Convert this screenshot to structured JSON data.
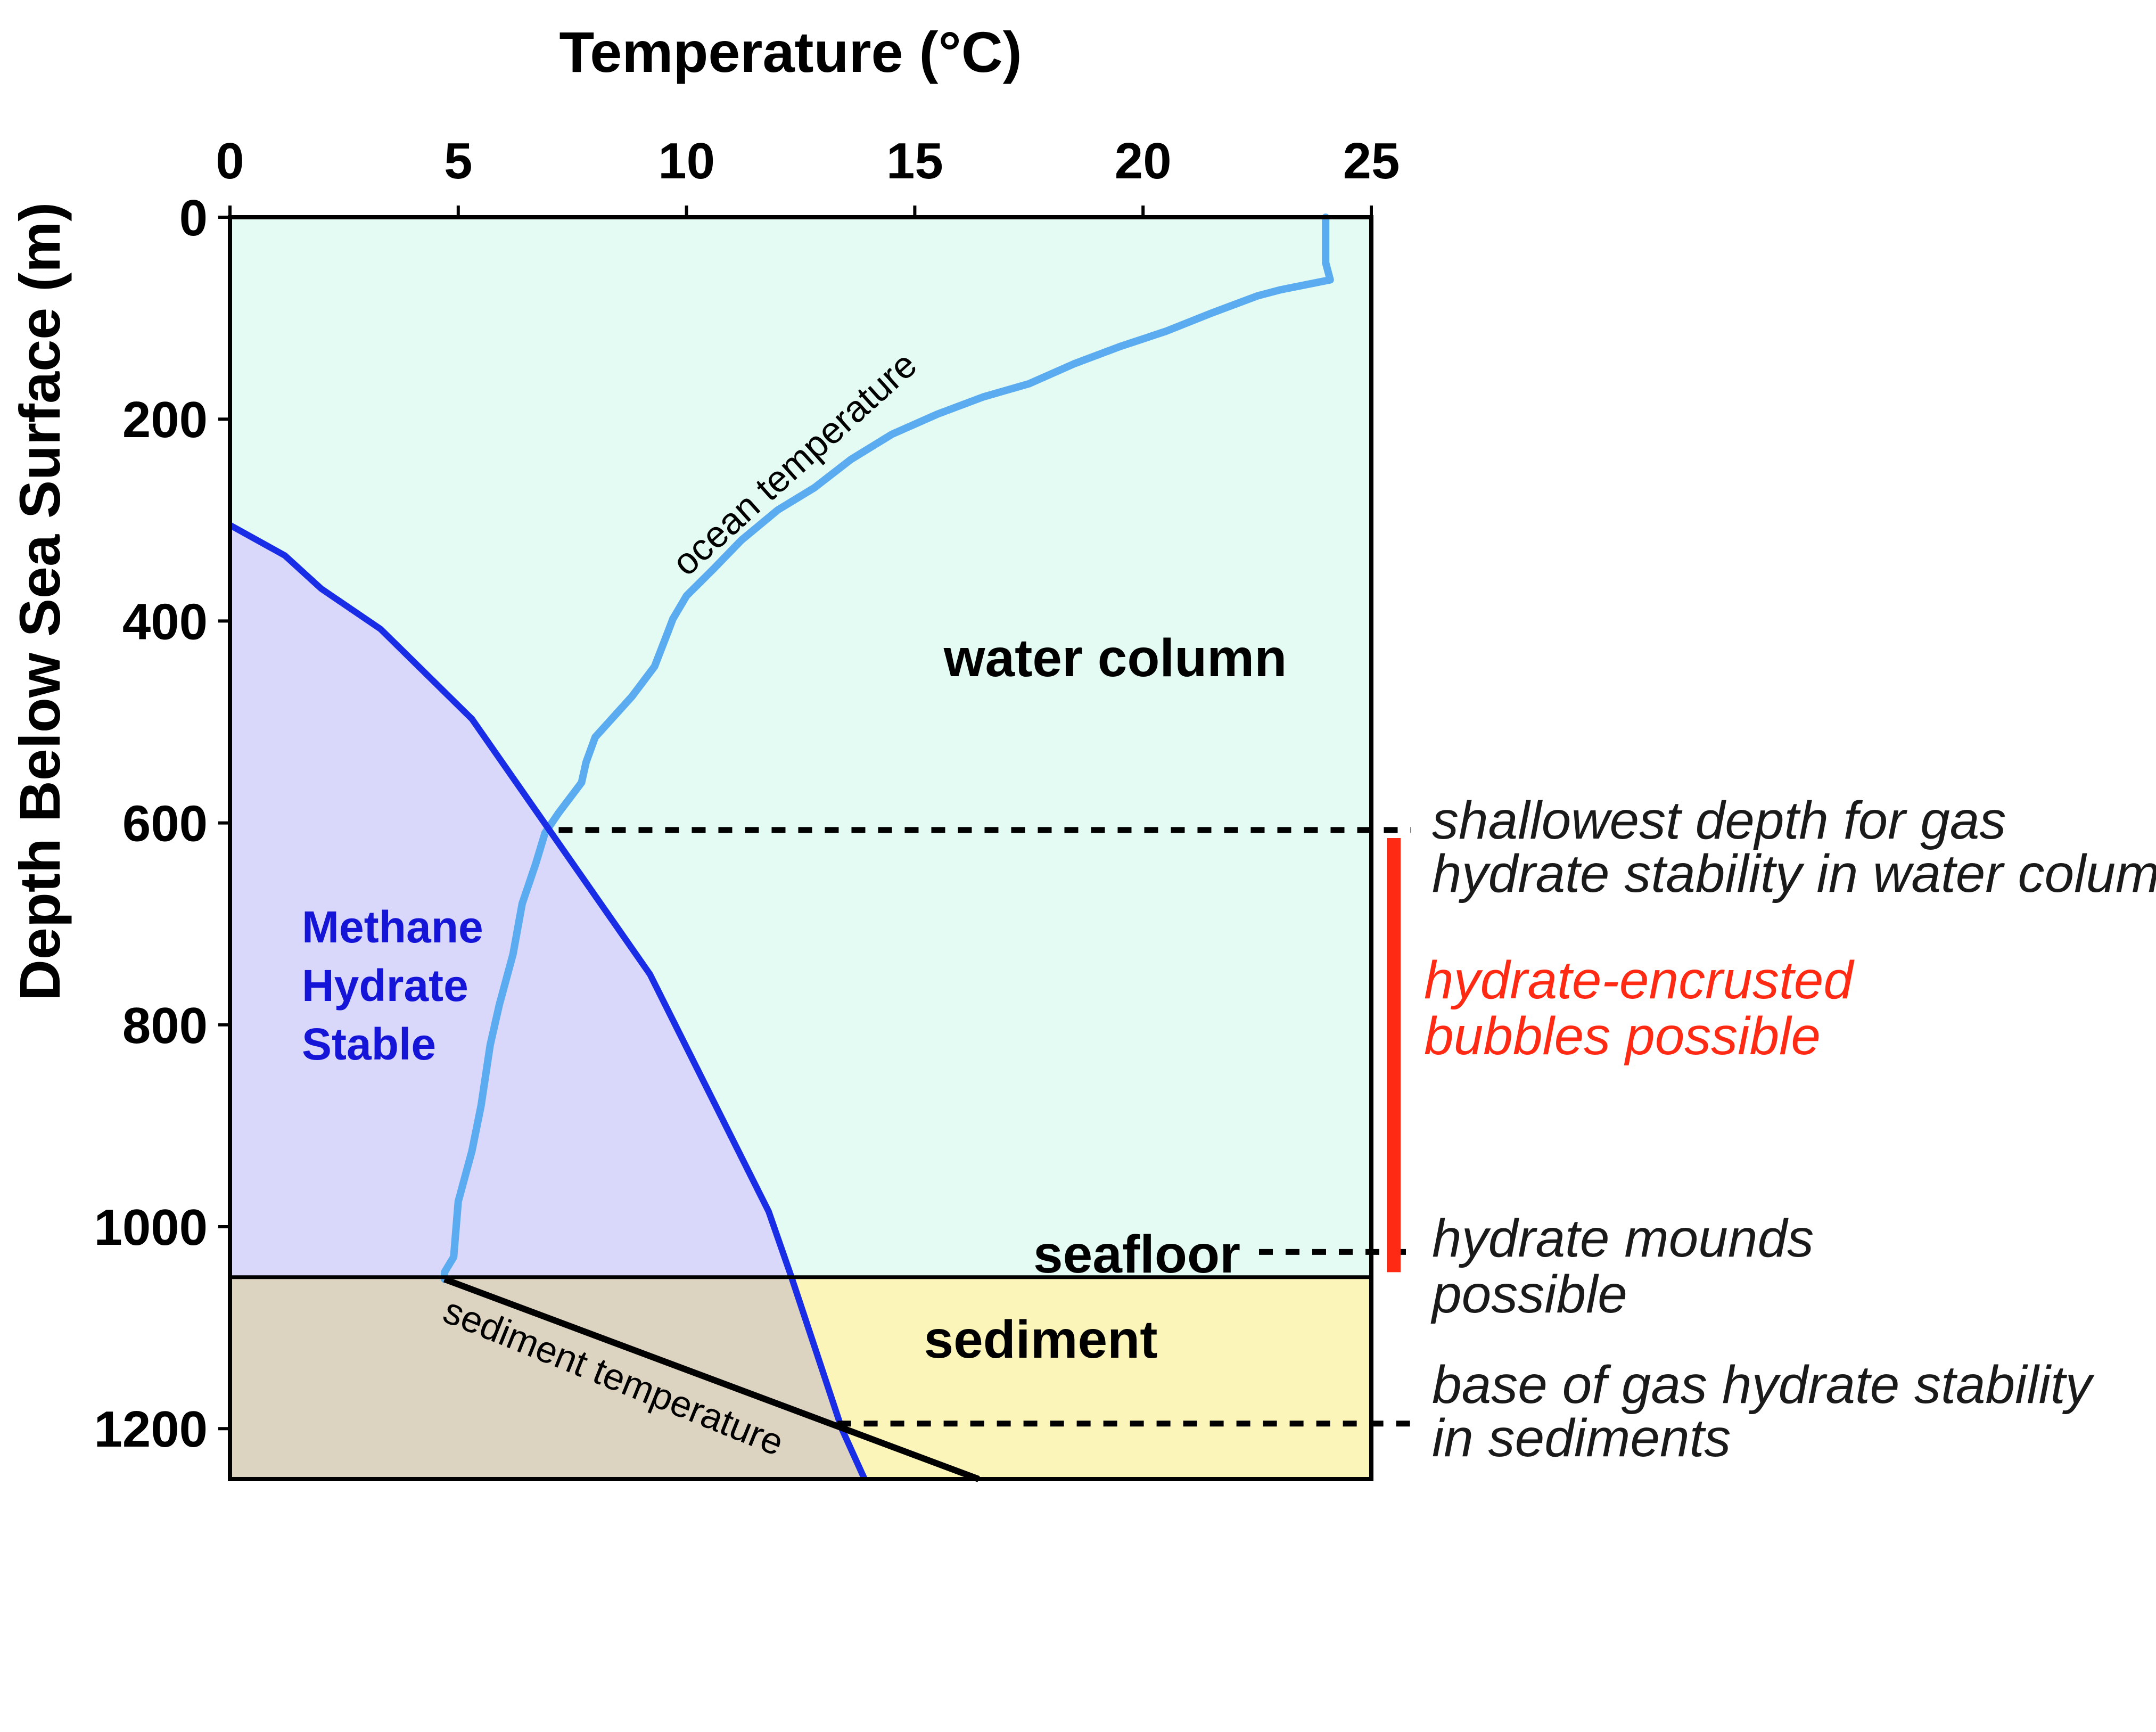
{
  "chart_data": {
    "type": "line",
    "xlabel": "Temperature (°C)",
    "ylabel": "Depth Below Sea Surface (m)",
    "xlim": [
      0,
      25
    ],
    "ylim": [
      0,
      1250
    ],
    "x_ticks": [
      "0",
      "5",
      "10",
      "15",
      "20",
      "25"
    ],
    "y_ticks": [
      "0",
      "200",
      "400",
      "600",
      "800",
      "1000",
      "1200"
    ],
    "seafloor_depth": 1050,
    "series": [
      {
        "name": "ocean temperature",
        "color": "#5aabf0",
        "points": [
          [
            24.0,
            0
          ],
          [
            24.0,
            45
          ],
          [
            24.1,
            62
          ],
          [
            23.0,
            72
          ],
          [
            22.5,
            78
          ],
          [
            21.5,
            95
          ],
          [
            20.5,
            113
          ],
          [
            19.5,
            128
          ],
          [
            18.5,
            145
          ],
          [
            17.5,
            165
          ],
          [
            16.5,
            178
          ],
          [
            15.5,
            195
          ],
          [
            14.5,
            215
          ],
          [
            13.6,
            240
          ],
          [
            12.8,
            268
          ],
          [
            12.0,
            290
          ],
          [
            11.2,
            320
          ],
          [
            10.6,
            348
          ],
          [
            10.0,
            375
          ],
          [
            9.7,
            398
          ],
          [
            9.6,
            410
          ],
          [
            9.3,
            445
          ],
          [
            8.8,
            475
          ],
          [
            8.5,
            490
          ],
          [
            8.0,
            515
          ],
          [
            7.8,
            540
          ],
          [
            7.7,
            560
          ],
          [
            7.2,
            590
          ],
          [
            6.9,
            610
          ],
          [
            6.7,
            640
          ],
          [
            6.4,
            680
          ],
          [
            6.2,
            730
          ],
          [
            5.9,
            780
          ],
          [
            5.7,
            820
          ],
          [
            5.5,
            880
          ],
          [
            5.3,
            925
          ],
          [
            5.0,
            975
          ],
          [
            4.9,
            1030
          ],
          [
            4.7,
            1045
          ],
          [
            4.7,
            1052
          ]
        ]
      },
      {
        "name": "methane hydrate stability boundary",
        "color": "#1a2de6",
        "points": [
          [
            0,
            305
          ],
          [
            1.2,
            335
          ],
          [
            2.0,
            368
          ],
          [
            3.3,
            408
          ],
          [
            5.3,
            497
          ],
          [
            9.2,
            750
          ],
          [
            11.8,
            985
          ],
          [
            12.3,
            1050
          ],
          [
            13.4,
            1200
          ],
          [
            13.9,
            1250
          ]
        ]
      },
      {
        "name": "sediment temperature",
        "color": "#000000",
        "points": [
          [
            4.7,
            1052
          ],
          [
            16.4,
            1250
          ]
        ]
      }
    ],
    "annotations": {
      "ocean_curve_label": "ocean temperature",
      "sediment_curve_label": "sediment temperature",
      "water_column": "water column",
      "sediment": "sediment",
      "methane_line1": "Methane",
      "methane_line2": "Hydrate",
      "methane_line3": "Stable",
      "seafloor": "seafloor",
      "shallowest_line1": "shallowest depth for gas",
      "shallowest_line2": "hydrate stability in water column",
      "encrusted_line1": "hydrate-encrusted",
      "encrusted_line2": "bubbles possible",
      "mounds_line1": "hydrate mounds",
      "mounds_line2": "possible",
      "base_line1": "base of gas hydrate stability",
      "base_line2": "in sediments"
    },
    "colors": {
      "water": "#e4fbf3",
      "hydrate_region": "#d9d8fb",
      "sediment_stable": "#dcd3c0",
      "sediment_unstable": "#fbf5b9",
      "red_bar": "#ff2a14"
    }
  }
}
